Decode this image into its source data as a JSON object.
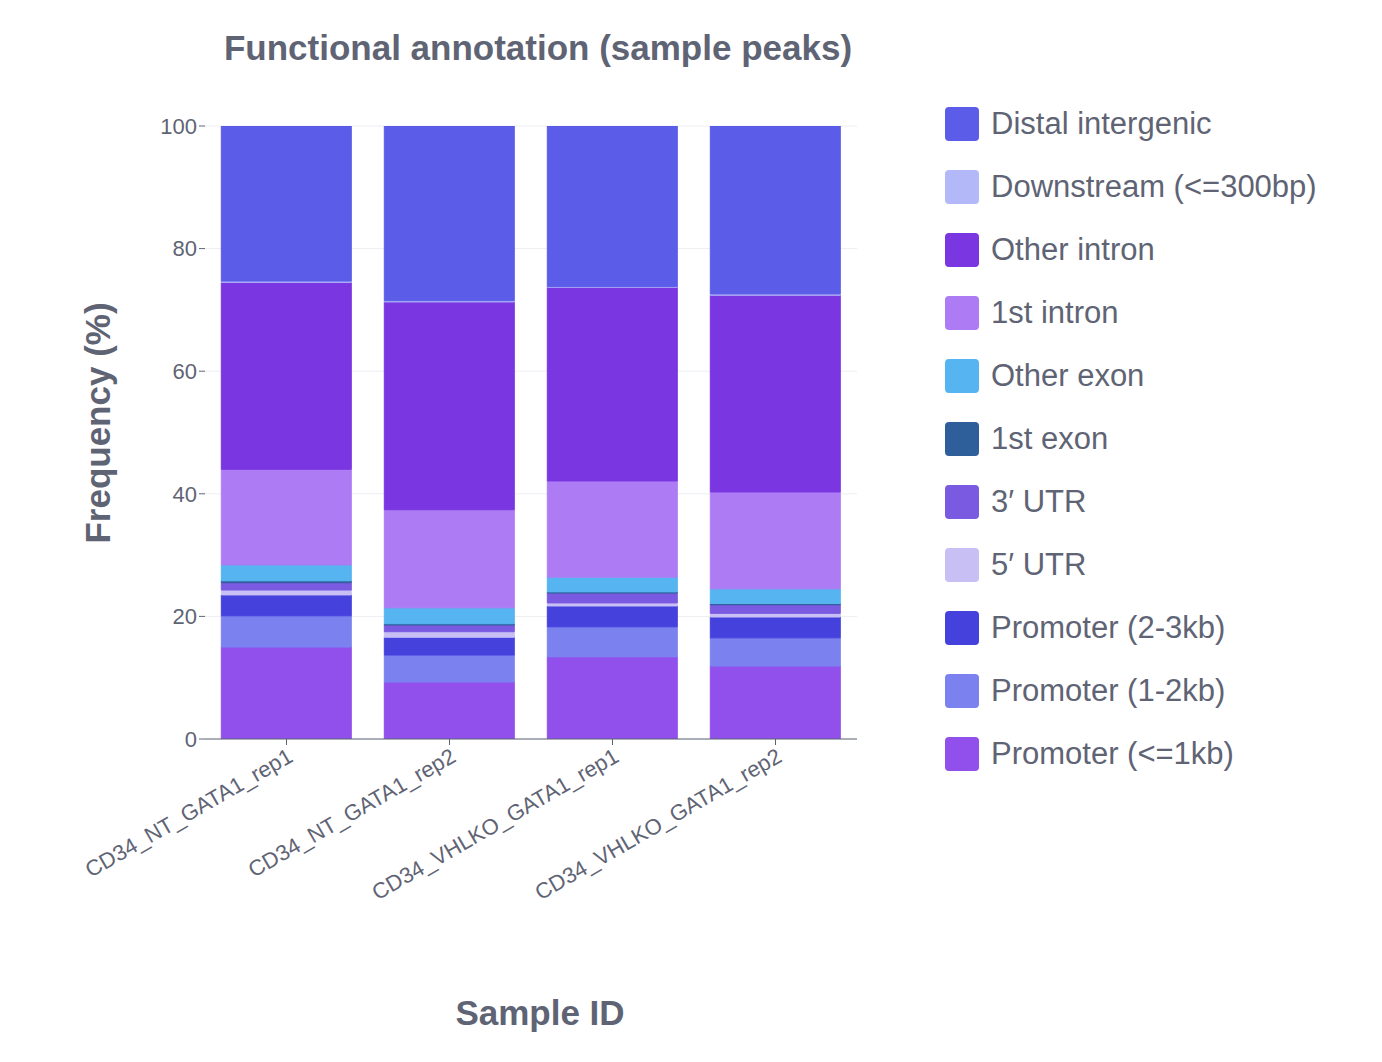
{
  "chart_data": {
    "type": "bar",
    "title": "Functional annotation (sample peaks)",
    "x_label": "Sample ID",
    "y_label": "Frequency (%)",
    "categories": [
      "CD34_NT_GATA1_rep1",
      "CD34_NT_GATA1_rep2",
      "CD34_VHLKO_GATA1_rep1",
      "CD34_VHLKO_GATA1_rep2"
    ],
    "stacked": true,
    "grid": true,
    "legend": "right",
    "ylim": [
      0,
      100
    ],
    "yticks": [
      0,
      20,
      40,
      60,
      80,
      100
    ],
    "series": [
      {
        "name": "Distal intergenic",
        "color": "#5b5de8",
        "values": [
          25.3,
          28.5,
          26.2,
          27.4
        ]
      },
      {
        "name": "Downstream (<=300bp)",
        "color": "#b3b9f8",
        "values": [
          0.2,
          0.2,
          0.1,
          0.2
        ]
      },
      {
        "name": "Other intron",
        "color": "#7a36e0",
        "values": [
          30.5,
          33.9,
          31.6,
          32.1
        ]
      },
      {
        "name": "1st intron",
        "color": "#ad7cf4",
        "values": [
          15.6,
          16.0,
          15.7,
          15.8
        ]
      },
      {
        "name": "Other exon",
        "color": "#56b4f0",
        "values": [
          2.6,
          2.6,
          2.4,
          2.4
        ]
      },
      {
        "name": "1st exon",
        "color": "#2e5f9a",
        "values": [
          0.3,
          0.2,
          0.2,
          0.2
        ]
      },
      {
        "name": "3′ UTR",
        "color": "#7a5ae0",
        "values": [
          1.2,
          1.1,
          1.6,
          1.4
        ]
      },
      {
        "name": "5′ UTR",
        "color": "#c8c0f5",
        "values": [
          0.8,
          0.9,
          0.5,
          0.6
        ]
      },
      {
        "name": "Promoter (2-3kb)",
        "color": "#4541dc",
        "values": [
          3.4,
          2.9,
          3.4,
          3.4
        ]
      },
      {
        "name": "Promoter (1-2kb)",
        "color": "#7b82f0",
        "values": [
          5.1,
          4.4,
          4.9,
          4.6
        ]
      },
      {
        "name": "Promoter (<=1kb)",
        "color": "#914fec",
        "values": [
          15.0,
          9.3,
          13.4,
          11.9
        ]
      }
    ]
  }
}
